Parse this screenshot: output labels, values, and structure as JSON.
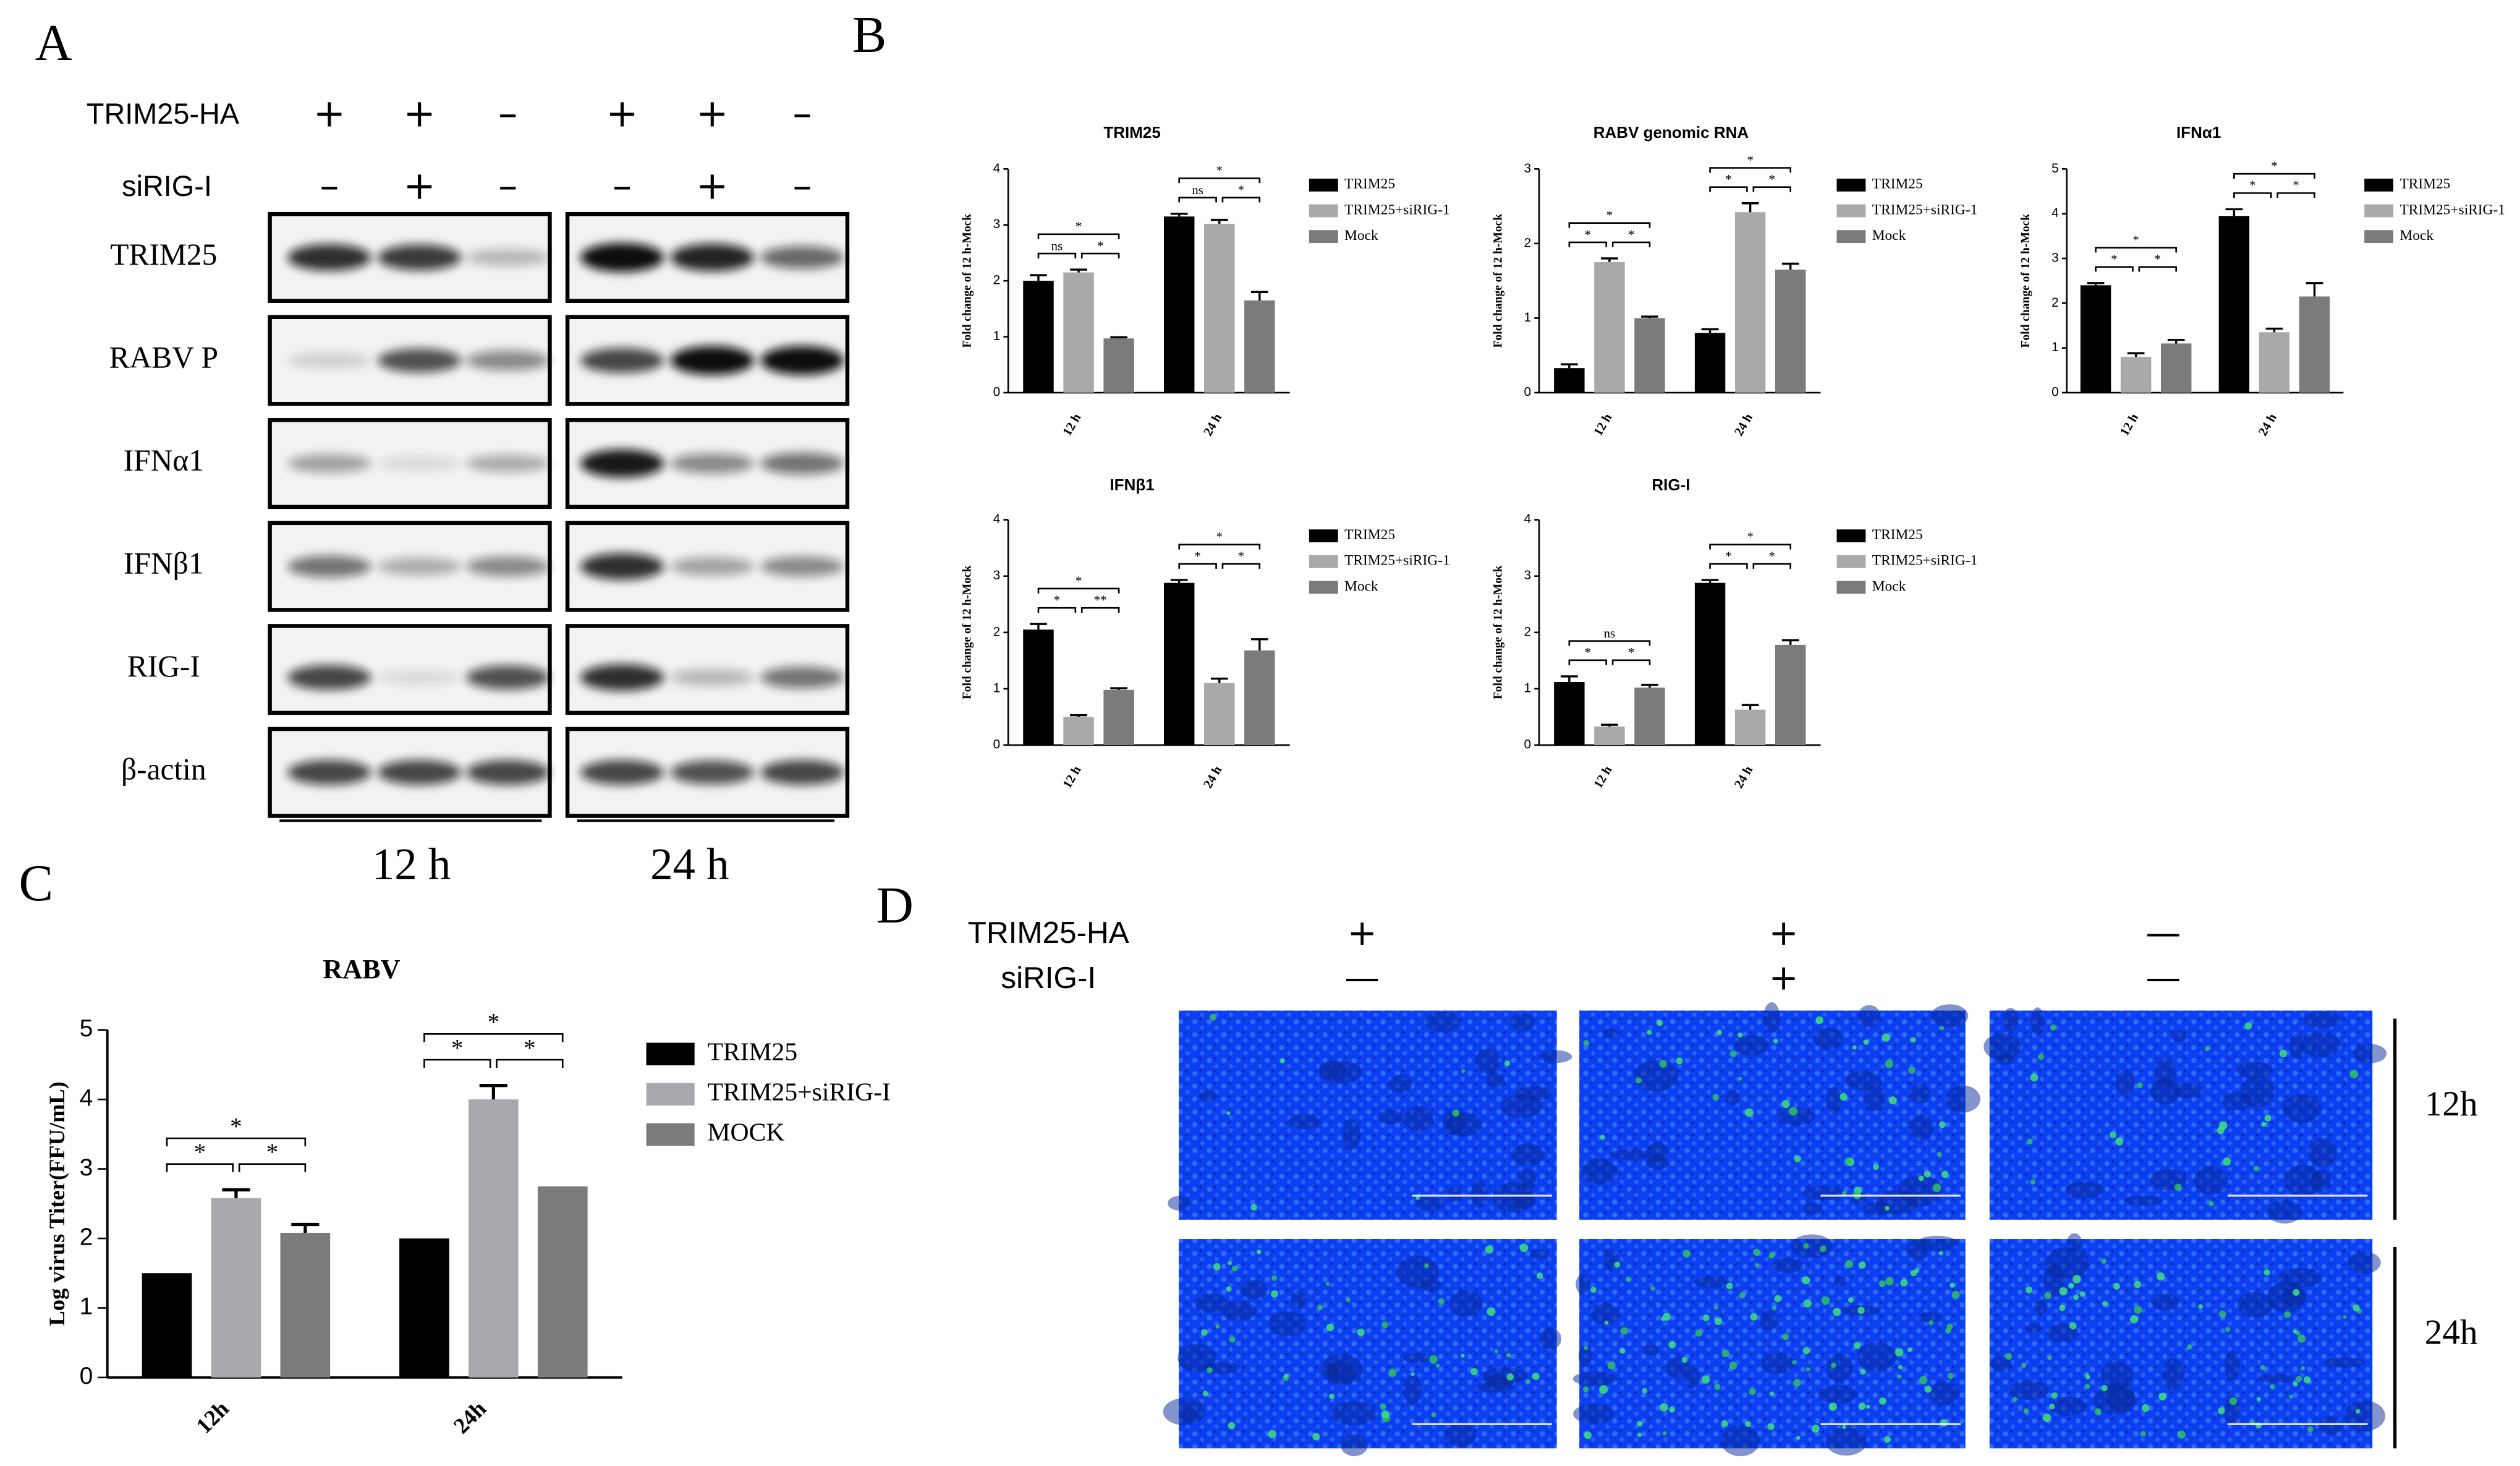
{
  "panel_labels": [
    "A",
    "B",
    "C",
    "D"
  ],
  "western_blot": {
    "treatments": [
      {
        "label": "TRIM25-HA",
        "signs": [
          "+",
          "+",
          "–",
          "+",
          "+",
          "–"
        ]
      },
      {
        "label": "siRIG-I",
        "signs": [
          "–",
          "+",
          "–",
          "–",
          "+",
          "–"
        ]
      }
    ],
    "rows": [
      "TRIM25",
      "RABV P",
      "IFNα1",
      "IFNβ1",
      "RIG-I",
      "β-actin"
    ],
    "times": [
      "12 h",
      "24 h"
    ]
  },
  "chart_data": [
    {
      "type": "bar",
      "title": "TRIM25",
      "y_label": "Fold change of 12 h-Mock",
      "categories": [
        "12 h",
        "24 h"
      ],
      "ylim": [
        0,
        4
      ],
      "yticks": [
        0,
        1,
        2,
        3,
        4
      ],
      "series": [
        {
          "name": "TRIM25",
          "color": "#000000",
          "values": [
            2.0,
            3.15
          ],
          "errors": [
            0.1,
            0.05
          ]
        },
        {
          "name": "TRIM25+siRIG-1",
          "color": "#a9a9a9",
          "values": [
            2.15,
            3.02
          ],
          "errors": [
            0.05,
            0.07
          ]
        },
        {
          "name": "Mock",
          "color": "#7b7b7b",
          "values": [
            0.97,
            1.65
          ],
          "errors": [
            0.02,
            0.15
          ]
        }
      ],
      "annotations": [
        [
          "ns",
          "*",
          "*"
        ],
        [
          "ns",
          "*",
          "*"
        ]
      ]
    },
    {
      "type": "bar",
      "title": "RABV genomic RNA",
      "y_label": "Fold change of 12 h-Mock",
      "categories": [
        "12 h",
        "24 h"
      ],
      "ylim": [
        0,
        3
      ],
      "yticks": [
        0,
        1,
        2,
        3
      ],
      "series": [
        {
          "name": "TRIM25",
          "color": "#000000",
          "values": [
            0.33,
            0.8
          ],
          "errors": [
            0.05,
            0.05
          ]
        },
        {
          "name": "TRIM25+siRIG-1",
          "color": "#a9a9a9",
          "values": [
            1.75,
            2.42
          ],
          "errors": [
            0.05,
            0.12
          ]
        },
        {
          "name": "Mock",
          "color": "#7b7b7b",
          "values": [
            1.0,
            1.65
          ],
          "errors": [
            0.02,
            0.08
          ]
        }
      ],
      "annotations": [
        [
          "*",
          "*",
          "*"
        ],
        [
          "*",
          "*",
          "*"
        ]
      ]
    },
    {
      "type": "bar",
      "title": "IFNα1",
      "y_label": "Fold change of 12 h-Mock",
      "categories": [
        "12 h",
        "24 h"
      ],
      "ylim": [
        0,
        5
      ],
      "yticks": [
        0,
        1,
        2,
        3,
        4,
        5
      ],
      "series": [
        {
          "name": "TRIM25",
          "color": "#000000",
          "values": [
            2.4,
            3.95
          ],
          "errors": [
            0.05,
            0.15
          ]
        },
        {
          "name": "TRIM25+siRIG-1",
          "color": "#a9a9a9",
          "values": [
            0.8,
            1.35
          ],
          "errors": [
            0.08,
            0.08
          ]
        },
        {
          "name": "Mock",
          "color": "#7b7b7b",
          "values": [
            1.1,
            2.15
          ],
          "errors": [
            0.08,
            0.3
          ]
        }
      ],
      "annotations": [
        [
          "*",
          "*",
          "*"
        ],
        [
          "*",
          "*",
          "*"
        ]
      ]
    },
    {
      "type": "bar",
      "title": "IFNβ1",
      "y_label": "Fold change of 12 h-Mock",
      "categories": [
        "12 h",
        "24 h"
      ],
      "ylim": [
        0,
        4
      ],
      "yticks": [
        0,
        1,
        2,
        3,
        4
      ],
      "series": [
        {
          "name": "TRIM25",
          "color": "#000000",
          "values": [
            2.05,
            2.88
          ],
          "errors": [
            0.1,
            0.05
          ]
        },
        {
          "name": "TRIM25+siRIG-1",
          "color": "#a9a9a9",
          "values": [
            0.5,
            1.1
          ],
          "errors": [
            0.03,
            0.08
          ]
        },
        {
          "name": "Mock",
          "color": "#7b7b7b",
          "values": [
            0.98,
            1.68
          ],
          "errors": [
            0.03,
            0.2
          ]
        }
      ],
      "annotations": [
        [
          "*",
          "**",
          "*"
        ],
        [
          "*",
          "*",
          "*"
        ]
      ]
    },
    {
      "type": "bar",
      "title": "RIG-I",
      "y_label": "Fold change of 12 h-Mock",
      "categories": [
        "12 h",
        "24 h"
      ],
      "ylim": [
        0,
        4
      ],
      "yticks": [
        0,
        1,
        2,
        3,
        4
      ],
      "series": [
        {
          "name": "TRIM25",
          "color": "#000000",
          "values": [
            1.12,
            2.88
          ],
          "errors": [
            0.1,
            0.05
          ]
        },
        {
          "name": "TRIM25+siRIG-1",
          "color": "#a9a9a9",
          "values": [
            0.33,
            0.63
          ],
          "errors": [
            0.03,
            0.08
          ]
        },
        {
          "name": "Mock",
          "color": "#7b7b7b",
          "values": [
            1.02,
            1.78
          ],
          "errors": [
            0.05,
            0.08
          ]
        }
      ],
      "annotations": [
        [
          "*",
          "*",
          "ns"
        ],
        [
          "*",
          "*",
          "*"
        ]
      ]
    },
    {
      "type": "bar",
      "title": "RABV",
      "y_label": "Log virus Titer(FFU/mL)",
      "categories": [
        "12h",
        "24h"
      ],
      "ylim": [
        0,
        5
      ],
      "yticks": [
        0,
        1,
        2,
        3,
        4,
        5
      ],
      "series": [
        {
          "name": "TRIM25",
          "color": "#000000",
          "values": [
            1.5,
            2.0
          ],
          "errors": [
            null,
            null
          ]
        },
        {
          "name": "TRIM25+siRIG-I",
          "color": "#a9a9ad",
          "values": [
            2.58,
            4.0
          ],
          "errors": [
            0.12,
            0.2
          ]
        },
        {
          "name": "MOCK",
          "color": "#7b7b7b",
          "values": [
            2.08,
            2.75
          ],
          "errors": [
            0.12,
            null
          ]
        }
      ],
      "annotations": [
        [
          "*",
          "*",
          "*"
        ],
        [
          "*",
          "*",
          "*"
        ]
      ]
    }
  ],
  "microscopy": {
    "treatments": [
      {
        "label": "TRIM25-HA",
        "signs": [
          "+",
          "+",
          "—"
        ]
      },
      {
        "label": "siRIG-I",
        "signs": [
          "—",
          "+",
          "—"
        ]
      }
    ],
    "times": [
      "12h",
      "24h"
    ]
  }
}
